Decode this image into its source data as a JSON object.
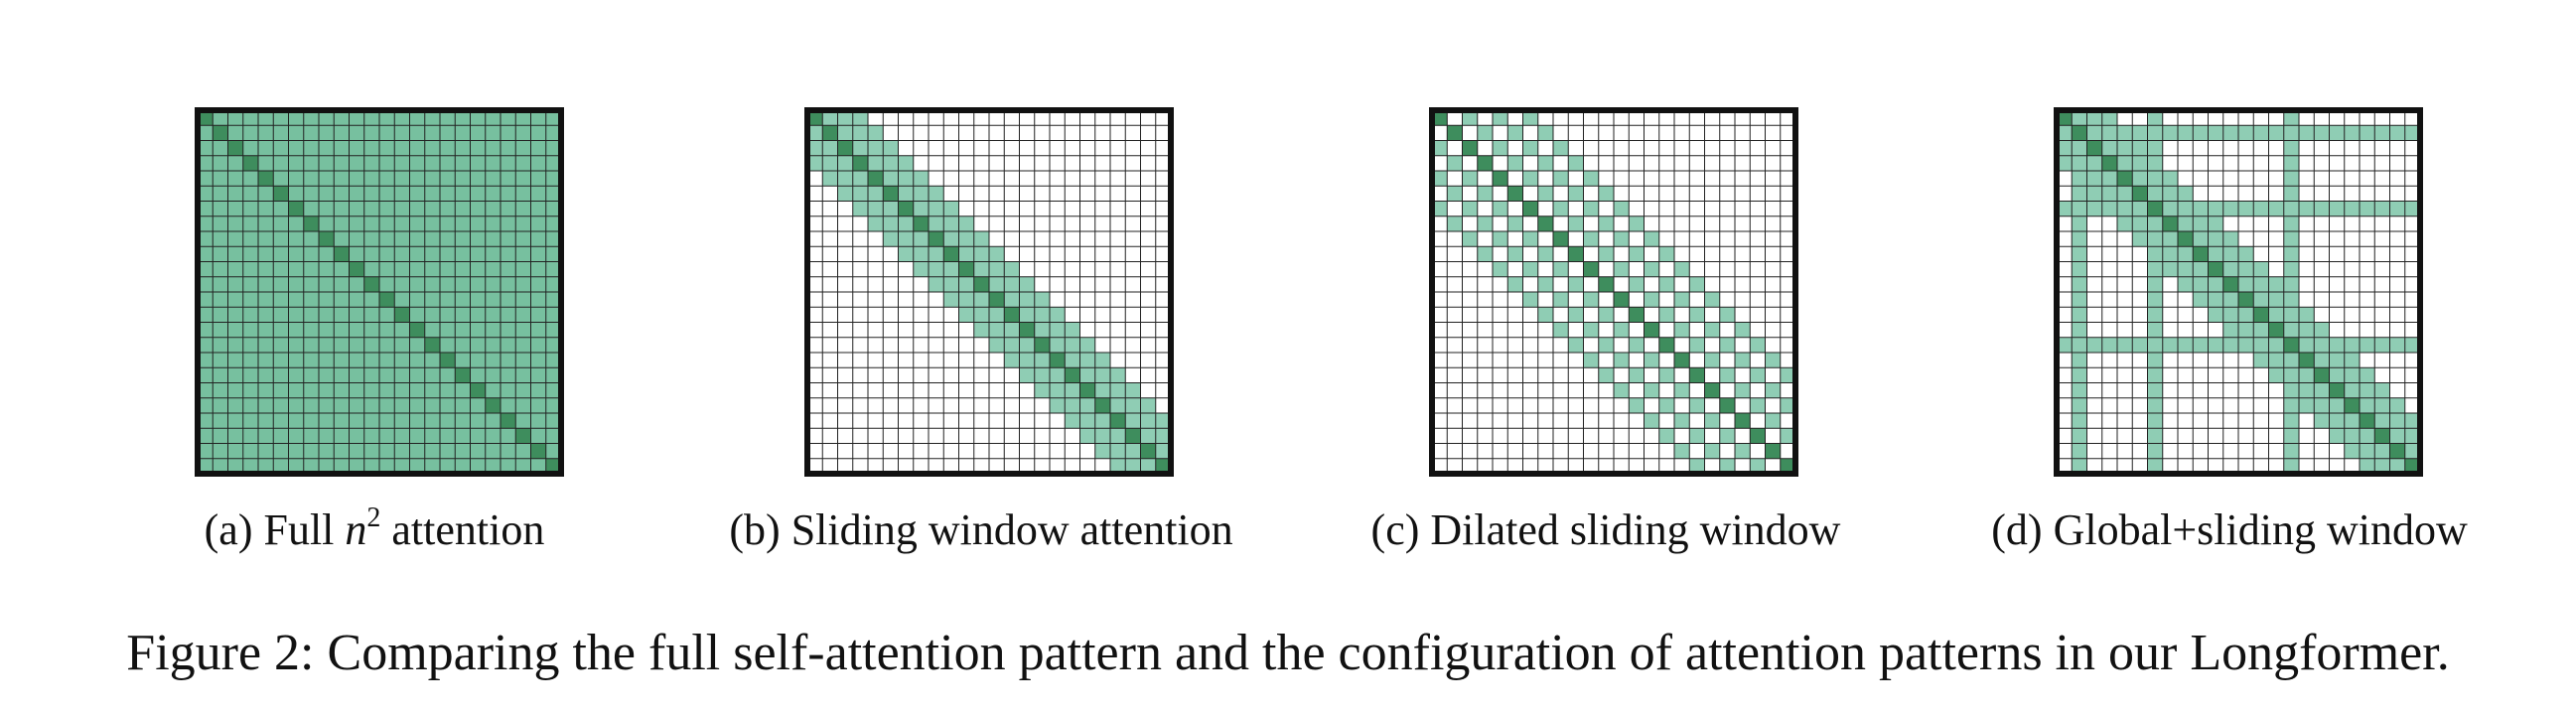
{
  "grid_size": 24,
  "colors": {
    "light": "#8fcdb4",
    "full": "#77c09f",
    "diagonal": "#3e8d5d",
    "grid_line": "#222222",
    "border": "#111111"
  },
  "panels": [
    {
      "id": "a",
      "pattern": "full",
      "caption_prefix": "(a) Full ",
      "caption_var": "n",
      "caption_exp": "2",
      "caption_suffix": " attention"
    },
    {
      "id": "b",
      "pattern": "sliding",
      "window": 3,
      "caption": "(b) Sliding window attention"
    },
    {
      "id": "c",
      "pattern": "dilated",
      "offsets": [
        2,
        4,
        6
      ],
      "caption": "(c) Dilated sliding window"
    },
    {
      "id": "d",
      "pattern": "global",
      "window": 3,
      "global_indices": [
        1,
        6,
        15
      ],
      "caption": "(d) Global+sliding window"
    }
  ],
  "figure_caption": "Figure 2: Comparing the full self-attention pattern and the configuration of attention patterns in our Longformer."
}
